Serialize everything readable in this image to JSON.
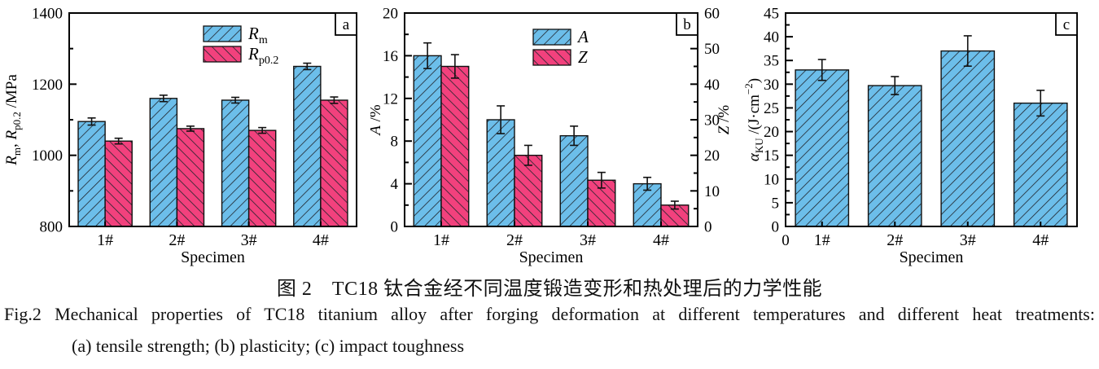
{
  "figure": {
    "caption_zh": "图 2　TC18 钛合金经不同温度锻造变形和热处理后的力学性能",
    "caption_en": "Fig.2  Mechanical properties of TC18 titanium alloy after forging deformation at different temperatures and different heat treatments:",
    "caption_items": "(a) tensile strength; (b) plasticity; (c) impact toughness"
  },
  "colors": {
    "bar_blue": "#6CBEEA",
    "bar_pink": "#F2417D",
    "hatch_line": "#20242c",
    "axis": "#111111",
    "background": "#ffffff"
  },
  "chart_data": [
    {
      "type": "bar",
      "panel": "a",
      "xlabel": "Specimen",
      "ylabel_parts": [
        {
          "t": "R",
          "it": true
        },
        {
          "t": "m",
          "st": "sub"
        },
        {
          "t": ", "
        },
        {
          "t": "R",
          "it": true
        },
        {
          "t": "p0.2",
          "st": "sub"
        },
        {
          "t": " /MPa"
        }
      ],
      "ylim": [
        800,
        1400
      ],
      "yticks": [
        800,
        1000,
        1200,
        1400
      ],
      "yminors": [
        900,
        1100,
        1300
      ],
      "categories": [
        "1#",
        "2#",
        "3#",
        "4#"
      ],
      "series": [
        {
          "name": "Rm",
          "color": "blue",
          "hatch": "fwd",
          "axis": "left",
          "label_parts": [
            {
              "t": "R",
              "it": true
            },
            {
              "t": "m",
              "st": "sub"
            }
          ],
          "values": [
            1095,
            1160,
            1155,
            1250
          ],
          "errors": [
            10,
            9,
            8,
            9
          ]
        },
        {
          "name": "Rp0.2",
          "color": "pink",
          "hatch": "bwd",
          "axis": "left",
          "label_parts": [
            {
              "t": "R",
              "it": true
            },
            {
              "t": "p0.2",
              "st": "sub"
            }
          ],
          "values": [
            1040,
            1075,
            1070,
            1155
          ],
          "errors": [
            8,
            7,
            8,
            9
          ]
        }
      ],
      "legend": true
    },
    {
      "type": "bar",
      "panel": "b",
      "xlabel": "Specimen",
      "ylabel_parts": [
        {
          "t": "A",
          "it": true
        },
        {
          "t": " /%"
        }
      ],
      "ylabel_right_parts": [
        {
          "t": "Z",
          "it": true
        },
        {
          "t": " /%"
        }
      ],
      "ylim": [
        0,
        20
      ],
      "yticks": [
        0,
        4,
        8,
        12,
        16,
        20
      ],
      "yminors": [
        2,
        6,
        10,
        14,
        18
      ],
      "ylim_right": [
        0,
        60
      ],
      "yticks_right": [
        0,
        10,
        20,
        30,
        40,
        50,
        60
      ],
      "yminors_right": [
        5,
        15,
        25,
        35,
        45,
        55
      ],
      "categories": [
        "1#",
        "2#",
        "3#",
        "4#"
      ],
      "series": [
        {
          "name": "A",
          "color": "blue",
          "hatch": "fwd",
          "axis": "left",
          "label_parts": [
            {
              "t": "A",
              "it": true
            }
          ],
          "values": [
            16.0,
            10.0,
            8.5,
            4.0
          ],
          "errors": [
            1.2,
            1.3,
            0.9,
            0.6
          ]
        },
        {
          "name": "Z",
          "color": "pink",
          "hatch": "bwd",
          "axis": "right",
          "label_parts": [
            {
              "t": "Z",
              "it": true
            }
          ],
          "values": [
            45,
            20,
            13,
            6
          ],
          "errors": [
            3.3,
            2.8,
            2.2,
            1.1
          ]
        }
      ],
      "legend": true
    },
    {
      "type": "bar",
      "panel": "c",
      "xlabel": "Specimen",
      "x_origin_label": "0",
      "ylabel_parts": [
        {
          "t": "α",
          "it": true
        },
        {
          "t": "KU",
          "st": "sub"
        },
        {
          "t": " /(J·cm"
        },
        {
          "t": "−2",
          "st": "sup"
        },
        {
          "t": ")"
        }
      ],
      "ylim": [
        0,
        45
      ],
      "yticks": [
        0,
        5,
        10,
        15,
        20,
        25,
        30,
        35,
        40,
        45
      ],
      "yminors": [
        2.5,
        7.5,
        12.5,
        17.5,
        22.5,
        27.5,
        32.5,
        37.5,
        42.5
      ],
      "categories": [
        "1#",
        "2#",
        "3#",
        "4#"
      ],
      "series": [
        {
          "name": "aKU",
          "color": "blue",
          "hatch": "fwd",
          "axis": "left",
          "label_parts": [],
          "values": [
            33,
            29.7,
            37,
            26
          ],
          "errors": [
            2.2,
            1.9,
            3.2,
            2.7
          ]
        }
      ],
      "legend": false
    }
  ]
}
